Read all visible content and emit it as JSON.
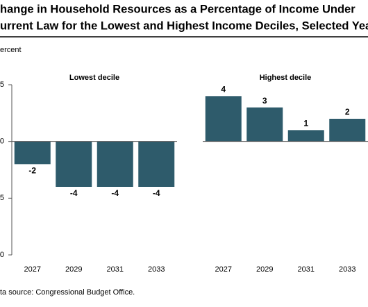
{
  "header": {
    "title_lines": [
      "hange in Household Resources as a Percentage of Income Under",
      "urrent Law for the Lowest and Highest Income Deciles, Selected Year"
    ],
    "y_label": "ercent",
    "source": "ta source: Congressional Budget Office."
  },
  "chart_data": [
    {
      "type": "bar",
      "subtitle": "Lowest decile",
      "categories": [
        "2027",
        "2029",
        "2031",
        "2033"
      ],
      "values": [
        -2,
        -4,
        -4,
        -4
      ],
      "color": "#2e5b6b",
      "ylim": [
        -10,
        5
      ],
      "yticks": [
        {
          "value": 5,
          "label": "5"
        },
        0,
        {
          "value": -5,
          "label": "5"
        },
        {
          "value": -10,
          "label": "0"
        }
      ]
    },
    {
      "type": "bar",
      "subtitle": "Highest decile",
      "categories": [
        "2027",
        "2029",
        "2031",
        "2033"
      ],
      "values": [
        4,
        3,
        1,
        2
      ],
      "color": "#2e5b6b",
      "ylim": [
        -10,
        5
      ]
    }
  ]
}
